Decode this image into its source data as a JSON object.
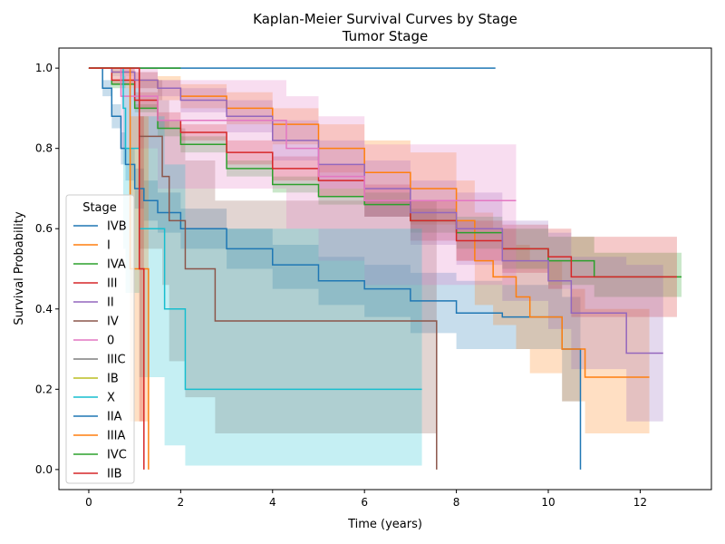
{
  "chart_data": {
    "type": "line",
    "title": "Kaplan-Meier Survival Curves by Stage",
    "subtitle": "Tumor Stage",
    "xlabel": "Time (years)",
    "ylabel": "Survival Probability",
    "xlim": [
      -0.65,
      13.55
    ],
    "ylim": [
      -0.05,
      1.05
    ],
    "xticks": [
      0,
      2,
      4,
      6,
      8,
      10,
      12
    ],
    "yticks": [
      0.0,
      0.2,
      0.4,
      0.6,
      0.8,
      1.0
    ],
    "xtick_labels": [
      "0",
      "2",
      "4",
      "6",
      "8",
      "10",
      "12"
    ],
    "ytick_labels": [
      "0.0",
      "0.2",
      "0.4",
      "0.6",
      "0.8",
      "1.0"
    ],
    "legend": {
      "title": "Stage",
      "placement": "lower-left"
    },
    "series": [
      {
        "name": "IVB",
        "color": "#1f77b4",
        "x": [
          0,
          0.3,
          0.5,
          0.7,
          0.8,
          1.0,
          1.2,
          1.5,
          2.0,
          3.0,
          4.0,
          5.0,
          6.0,
          7.0,
          8.0,
          9.0,
          10.3,
          10.7
        ],
        "y": [
          1.0,
          0.95,
          0.88,
          0.8,
          0.76,
          0.7,
          0.67,
          0.64,
          0.6,
          0.55,
          0.51,
          0.47,
          0.45,
          0.42,
          0.39,
          0.38,
          0.3,
          0.0
        ],
        "ci_lower": [
          1.0,
          0.93,
          0.85,
          0.76,
          0.72,
          0.65,
          0.62,
          0.59,
          0.55,
          0.5,
          0.45,
          0.41,
          0.38,
          0.34,
          0.3,
          0.3,
          0.17,
          0.17
        ],
        "ci_upper": [
          1.0,
          0.97,
          0.91,
          0.84,
          0.8,
          0.75,
          0.72,
          0.69,
          0.65,
          0.6,
          0.56,
          0.53,
          0.51,
          0.49,
          0.47,
          0.46,
          0.43,
          0.43
        ]
      },
      {
        "name": "I",
        "color": "#ff7f0e",
        "x": [
          0,
          0.5,
          1.0,
          1.5,
          2.0,
          3.0,
          4.0,
          5.0,
          6.0,
          7.0,
          8.0,
          8.4,
          8.8,
          9.3,
          9.6,
          10.3,
          10.8,
          12.2
        ],
        "y": [
          1.0,
          0.99,
          0.97,
          0.95,
          0.93,
          0.9,
          0.86,
          0.8,
          0.74,
          0.7,
          0.62,
          0.52,
          0.48,
          0.43,
          0.38,
          0.3,
          0.23,
          0.23
        ],
        "ci_lower": [
          1.0,
          0.98,
          0.95,
          0.92,
          0.9,
          0.86,
          0.81,
          0.74,
          0.66,
          0.61,
          0.52,
          0.41,
          0.36,
          0.3,
          0.24,
          0.17,
          0.09,
          0.09
        ],
        "ci_upper": [
          1.0,
          1.0,
          0.99,
          0.98,
          0.96,
          0.94,
          0.9,
          0.86,
          0.82,
          0.79,
          0.72,
          0.64,
          0.6,
          0.56,
          0.52,
          0.45,
          0.4,
          0.4
        ]
      },
      {
        "name": "IVA",
        "color": "#2ca02c",
        "x": [
          0,
          0.5,
          1.0,
          1.5,
          2.0,
          3.0,
          4.0,
          5.0,
          6.0,
          7.0,
          8.0,
          9.0,
          10.0,
          11.0,
          12.0,
          12.9
        ],
        "y": [
          1.0,
          0.96,
          0.9,
          0.85,
          0.81,
          0.75,
          0.71,
          0.68,
          0.66,
          0.62,
          0.59,
          0.55,
          0.52,
          0.48,
          0.48,
          0.48
        ],
        "ci_lower": [
          1.0,
          0.95,
          0.89,
          0.83,
          0.79,
          0.73,
          0.69,
          0.66,
          0.63,
          0.59,
          0.55,
          0.5,
          0.46,
          0.43,
          0.43,
          0.43
        ],
        "ci_upper": [
          1.0,
          0.97,
          0.91,
          0.87,
          0.83,
          0.77,
          0.73,
          0.7,
          0.69,
          0.65,
          0.63,
          0.6,
          0.58,
          0.54,
          0.54,
          0.54
        ]
      },
      {
        "name": "III",
        "color": "#d62728",
        "x": [
          0,
          0.5,
          1.0,
          1.5,
          2.0,
          3.0,
          4.0,
          5.0,
          6.0,
          7.0,
          8.0,
          9.0,
          10.0,
          10.5,
          12.8
        ],
        "y": [
          1.0,
          0.97,
          0.92,
          0.87,
          0.84,
          0.79,
          0.75,
          0.72,
          0.67,
          0.62,
          0.57,
          0.55,
          0.53,
          0.48,
          0.48
        ],
        "ci_lower": [
          1.0,
          0.96,
          0.9,
          0.85,
          0.82,
          0.76,
          0.72,
          0.68,
          0.63,
          0.57,
          0.52,
          0.49,
          0.45,
          0.38,
          0.38
        ],
        "ci_upper": [
          1.0,
          0.98,
          0.94,
          0.89,
          0.86,
          0.82,
          0.78,
          0.76,
          0.71,
          0.67,
          0.62,
          0.61,
          0.6,
          0.58,
          0.58
        ]
      },
      {
        "name": "II",
        "color": "#9467bd",
        "x": [
          0,
          0.5,
          1.0,
          1.5,
          2.0,
          3.0,
          4.0,
          5.0,
          6.0,
          7.0,
          8.0,
          9.0,
          10.0,
          10.5,
          11.7,
          12.5
        ],
        "y": [
          1.0,
          0.99,
          0.97,
          0.95,
          0.92,
          0.88,
          0.82,
          0.76,
          0.7,
          0.64,
          0.6,
          0.52,
          0.47,
          0.39,
          0.29,
          0.29
        ],
        "ci_lower": [
          1.0,
          0.98,
          0.95,
          0.93,
          0.89,
          0.84,
          0.77,
          0.7,
          0.63,
          0.56,
          0.51,
          0.42,
          0.35,
          0.25,
          0.12,
          0.12
        ],
        "ci_upper": [
          1.0,
          1.0,
          0.99,
          0.97,
          0.95,
          0.92,
          0.87,
          0.82,
          0.77,
          0.72,
          0.69,
          0.62,
          0.59,
          0.53,
          0.51,
          0.51
        ]
      },
      {
        "name": "IV",
        "color": "#8c564b",
        "x": [
          0,
          1.1,
          1.6,
          1.75,
          2.1,
          2.75,
          7.55,
          7.57
        ],
        "y": [
          1.0,
          0.83,
          0.73,
          0.62,
          0.5,
          0.37,
          0.37,
          0.0
        ],
        "ci_lower": [
          1.0,
          0.55,
          0.46,
          0.27,
          0.18,
          0.09,
          0.09,
          0.09
        ],
        "ci_upper": [
          1.0,
          0.97,
          0.92,
          0.85,
          0.77,
          0.67,
          0.67,
          0.67
        ]
      },
      {
        "name": "0",
        "color": "#e377c2",
        "x": [
          0,
          0.7,
          1.5,
          3.0,
          4.3,
          5.0,
          6.0,
          9.3
        ],
        "y": [
          1.0,
          0.93,
          0.87,
          0.87,
          0.8,
          0.73,
          0.67,
          0.67
        ],
        "ci_lower": [
          1.0,
          0.8,
          0.7,
          0.7,
          0.6,
          0.52,
          0.46,
          0.46
        ],
        "ci_upper": [
          1.0,
          1.0,
          0.97,
          0.97,
          0.93,
          0.88,
          0.81,
          0.81
        ]
      },
      {
        "name": "IIIC",
        "color": "#7f7f7f",
        "x": [
          0,
          2.0
        ],
        "y": [
          1.0,
          1.0
        ],
        "ci_lower": [
          1.0,
          1.0
        ],
        "ci_upper": [
          1.0,
          1.0
        ]
      },
      {
        "name": "IB",
        "color": "#bcbd22",
        "x": [
          0,
          1.0
        ],
        "y": [
          1.0,
          1.0
        ],
        "ci_lower": [
          1.0,
          1.0
        ],
        "ci_upper": [
          1.0,
          1.0
        ]
      },
      {
        "name": "X",
        "color": "#17becf",
        "x": [
          0,
          0.75,
          0.8,
          1.1,
          1.65,
          2.1,
          7.25
        ],
        "y": [
          1.0,
          0.9,
          0.8,
          0.6,
          0.4,
          0.2,
          0.2
        ],
        "ci_lower": [
          1.0,
          0.55,
          0.44,
          0.23,
          0.06,
          0.01,
          0.01
        ],
        "ci_upper": [
          1.0,
          0.98,
          0.95,
          0.88,
          0.76,
          0.6,
          0.6
        ]
      },
      {
        "name": "IIA",
        "color": "#1f77b4",
        "x": [
          0,
          8.85
        ],
        "y": [
          1.0,
          1.0
        ],
        "ci_lower": [
          1.0,
          1.0
        ],
        "ci_upper": [
          1.0,
          1.0
        ]
      },
      {
        "name": "IIIA",
        "color": "#ff7f0e",
        "x": [
          0,
          0.9,
          1.3
        ],
        "y": [
          1.0,
          0.5,
          0.0
        ],
        "ci_lower": [
          1.0,
          0.12,
          0.12
        ],
        "ci_upper": [
          1.0,
          0.88,
          0.88
        ]
      },
      {
        "name": "IVC",
        "color": "#2ca02c",
        "x": [
          0,
          2.0
        ],
        "y": [
          1.0,
          1.0
        ],
        "ci_lower": [
          1.0,
          1.0
        ],
        "ci_upper": [
          1.0,
          1.0
        ]
      },
      {
        "name": "IIB",
        "color": "#d62728",
        "x": [
          0,
          1.1,
          1.2
        ],
        "y": [
          1.0,
          0.5,
          0.0
        ],
        "ci_lower": [
          1.0,
          0.12,
          0.12
        ],
        "ci_upper": [
          1.0,
          0.88,
          0.88
        ]
      }
    ]
  }
}
